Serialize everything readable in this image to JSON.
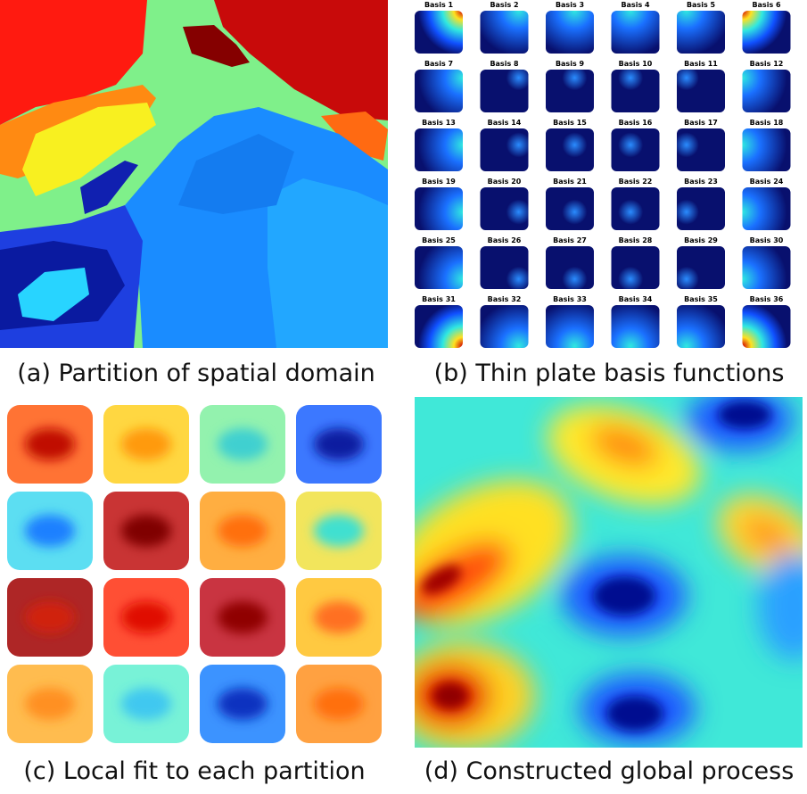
{
  "panels": [
    {
      "caption": "(a) Partition of spatial domain"
    },
    {
      "caption": "(b) Thin plate basis functions"
    },
    {
      "caption": "(c) Local fit to each partition"
    },
    {
      "caption": "(d) Constructed global process"
    }
  ],
  "basis_labels": [
    "Basis 1",
    "Basis 2",
    "Basis 3",
    "Basis 4",
    "Basis 5",
    "Basis 6",
    "Basis 7",
    "Basis 8",
    "Basis 9",
    "Basis 10",
    "Basis 11",
    "Basis 12",
    "Basis 13",
    "Basis 14",
    "Basis 15",
    "Basis 16",
    "Basis 17",
    "Basis 18",
    "Basis 19",
    "Basis 20",
    "Basis 21",
    "Basis 22",
    "Basis 23",
    "Basis 24",
    "Basis 25",
    "Basis 26",
    "Basis 27",
    "Basis 28",
    "Basis 29",
    "Basis 30",
    "Basis 31",
    "Basis 32",
    "Basis 33",
    "Basis 34",
    "Basis 35",
    "Basis 36"
  ]
}
